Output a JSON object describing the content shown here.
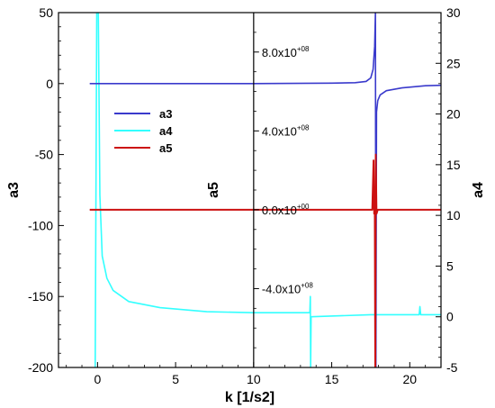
{
  "chart_data": {
    "type": "line",
    "xlabel": "k [1/s2]",
    "xlim": [
      -2.5,
      22
    ],
    "xticks": [
      0,
      5,
      10,
      15,
      20
    ],
    "xtick_labels": [
      "0",
      "5",
      "10",
      "15",
      "20"
    ],
    "axes": [
      {
        "id": "a3",
        "label": "a3",
        "position": "left",
        "ylim": [
          -200,
          50
        ],
        "ticks": [
          50,
          0,
          -50,
          -100,
          -150,
          -200
        ],
        "tick_labels": [
          "50",
          "0",
          "-50",
          "-100",
          "-150",
          "-200"
        ]
      },
      {
        "id": "a5",
        "label": "a5",
        "position": "middle (x = 10)",
        "ylim": [
          -800000000.0,
          1000000000.0
        ],
        "ticks": [
          800000000.0,
          400000000.0,
          0,
          -400000000.0
        ],
        "tick_labels": [
          {
            "mantissa": "8.0x10",
            "exponent": "+08"
          },
          {
            "mantissa": "4.0x10",
            "exponent": "+08"
          },
          {
            "mantissa": "0.0x10",
            "exponent": "+00"
          },
          {
            "mantissa": "-4.0x10",
            "exponent": "+08"
          }
        ]
      },
      {
        "id": "a4",
        "label": "a4",
        "position": "right",
        "ylim": [
          -5,
          30
        ],
        "ticks": [
          30,
          25,
          20,
          15,
          10,
          5,
          0,
          -5
        ],
        "tick_labels": [
          "30",
          "25",
          "20",
          "15",
          "10",
          "5",
          "0",
          "-5"
        ]
      }
    ],
    "series": [
      {
        "name": "a3",
        "axis": "a3",
        "color": "#3a3acc",
        "points": [
          [
            -0.5,
            0
          ],
          [
            10,
            0
          ],
          [
            15,
            0.3
          ],
          [
            16.5,
            0.6
          ],
          [
            17.2,
            1.5
          ],
          [
            17.5,
            4
          ],
          [
            17.65,
            10
          ],
          [
            17.75,
            26
          ],
          [
            17.8,
            50
          ],
          [
            17.83,
            -200
          ],
          [
            17.87,
            -20
          ],
          [
            17.95,
            -12
          ],
          [
            18.1,
            -8
          ],
          [
            18.5,
            -5
          ],
          [
            19.5,
            -3
          ],
          [
            21,
            -1.5
          ],
          [
            22,
            -1.2
          ]
        ]
      },
      {
        "name": "a4",
        "axis": "a4",
        "color": "#33ffff",
        "points": [
          [
            -0.15,
            -5
          ],
          [
            -0.05,
            30
          ],
          [
            0.05,
            30
          ],
          [
            0.15,
            12
          ],
          [
            0.3,
            6
          ],
          [
            0.6,
            3.8
          ],
          [
            1,
            2.6
          ],
          [
            2,
            1.5
          ],
          [
            4,
            0.9
          ],
          [
            7,
            0.5
          ],
          [
            10,
            0.4
          ],
          [
            13.6,
            0.4
          ],
          [
            13.63,
            2
          ],
          [
            13.65,
            -5
          ],
          [
            13.68,
            0
          ],
          [
            17.5,
            0.2
          ],
          [
            20.6,
            0.2
          ],
          [
            20.65,
            1
          ],
          [
            20.7,
            0.2
          ],
          [
            22,
            0.2
          ]
        ]
      },
      {
        "name": "a5",
        "axis": "a5",
        "color": "#cc1111",
        "points": [
          [
            -0.5,
            0
          ],
          [
            17.6,
            0
          ],
          [
            17.68,
            250000000.0
          ],
          [
            17.72,
            -20000000.0
          ],
          [
            17.76,
            0
          ],
          [
            17.79,
            -800000000.0
          ],
          [
            17.82,
            280000000.0
          ],
          [
            17.87,
            -20000000.0
          ],
          [
            17.95,
            0
          ],
          [
            22,
            0
          ]
        ]
      }
    ],
    "legend": {
      "placement": "upper-left",
      "entries": [
        "a3",
        "a4",
        "a5"
      ]
    },
    "grid": false
  }
}
